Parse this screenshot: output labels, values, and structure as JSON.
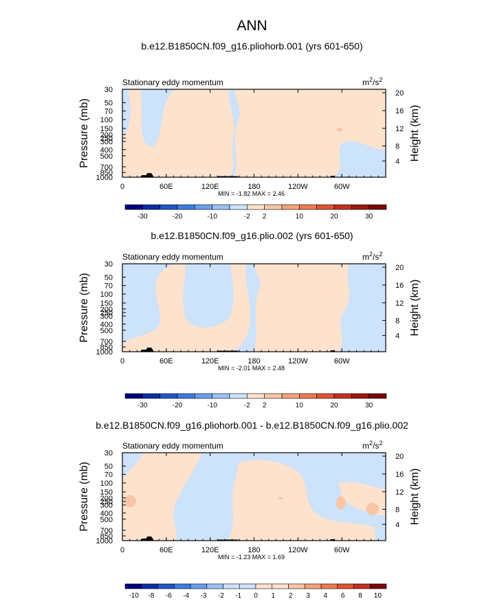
{
  "page_title": "ANN",
  "colors": {
    "neg": [
      "#00007f",
      "#0a2ea3",
      "#1f56c9",
      "#3d7de0",
      "#6a9fec",
      "#9cc2f4",
      "#cde2fb"
    ],
    "pos": [
      "#fde2cd",
      "#f8c6a6",
      "#f3a27a",
      "#ec7a52",
      "#df5433",
      "#c42f1e",
      "#9e1612",
      "#7a0606"
    ],
    "topo": "#000000"
  },
  "chart_data": [
    {
      "type": "contour",
      "title": "b.e12.B1850CN.f09_g16.pliohorb.001 (yrs 601-650)",
      "subtitle_left": "Stationary eddy momentum",
      "units_base": "m",
      "units_exp_top": "2",
      "units_mid": "/s",
      "units_exp_bot": "2",
      "ylabel": "Pressure (mb)",
      "ylabel_right": "Height (km)",
      "pressure_ticks": [
        "30",
        "50",
        "70",
        "100",
        "150",
        "200",
        "250",
        "300",
        "400",
        "500",
        "700",
        "850",
        "1000"
      ],
      "height_ticks": [
        "20",
        "16",
        "12",
        "8",
        "4"
      ],
      "lon_ticks": [
        "0",
        "60E",
        "120E",
        "180",
        "120W",
        "60W"
      ],
      "minmax": "MIN =   -1.82   MAX =   2.46",
      "colorbar_labels": [
        "-30",
        "-20",
        "-10",
        "-2",
        "2",
        "10",
        "20",
        "30"
      ],
      "colorbar_levels": [
        -40,
        -30,
        -25,
        -20,
        -15,
        -10,
        -5,
        -2,
        2,
        5,
        10,
        15,
        20,
        25,
        30,
        40
      ],
      "min": -1.82,
      "max": 2.46
    },
    {
      "type": "contour",
      "title": "b.e12.B1850CN.f09_g16.plio.002 (yrs 601-650)",
      "subtitle_left": "Stationary eddy momentum",
      "units_base": "m",
      "units_exp_top": "2",
      "units_mid": "/s",
      "units_exp_bot": "2",
      "ylabel": "Pressure (mb)",
      "ylabel_right": "Height (km)",
      "pressure_ticks": [
        "30",
        "50",
        "70",
        "100",
        "150",
        "200",
        "250",
        "300",
        "400",
        "500",
        "700",
        "850",
        "1000"
      ],
      "height_ticks": [
        "20",
        "16",
        "12",
        "8",
        "4"
      ],
      "lon_ticks": [
        "0",
        "60E",
        "120E",
        "180",
        "120W",
        "60W"
      ],
      "minmax": "MIN =   -2.01   MAX =   2.48",
      "colorbar_labels": [
        "-30",
        "-20",
        "-10",
        "-2",
        "2",
        "10",
        "20",
        "30"
      ],
      "colorbar_levels": [
        -40,
        -30,
        -25,
        -20,
        -15,
        -10,
        -5,
        -2,
        2,
        5,
        10,
        15,
        20,
        25,
        30,
        40
      ],
      "min": -2.01,
      "max": 2.48
    },
    {
      "type": "contour",
      "title": "b.e12.B1850CN.f09_g16.pliohorb.001 - b.e12.B1850CN.f09_g16.plio.002",
      "subtitle_left": "Stationary eddy momentum",
      "units_base": "m",
      "units_exp_top": "2",
      "units_mid": "/s",
      "units_exp_bot": "2",
      "ylabel": "Pressure (mb)",
      "ylabel_right": "Height (km)",
      "pressure_ticks": [
        "30",
        "50",
        "70",
        "100",
        "150",
        "200",
        "250",
        "300",
        "400",
        "500",
        "700",
        "850",
        "1000"
      ],
      "height_ticks": [
        "20",
        "16",
        "12",
        "8",
        "4"
      ],
      "lon_ticks": [
        "0",
        "60E",
        "120E",
        "180",
        "120W",
        "60W"
      ],
      "minmax": "MIN =   -1.23   MAX =   1.69",
      "colorbar_labels": [
        "-10",
        "-8",
        "-6",
        "-4",
        "-3",
        "-2",
        "-1",
        "0",
        "1",
        "2",
        "3",
        "4",
        "6",
        "8",
        "10"
      ],
      "colorbar_levels": [
        -10,
        -8,
        -6,
        -4,
        -3,
        -2,
        -1,
        0,
        1,
        2,
        3,
        4,
        6,
        8,
        10
      ],
      "min": -1.23,
      "max": 1.69
    }
  ]
}
